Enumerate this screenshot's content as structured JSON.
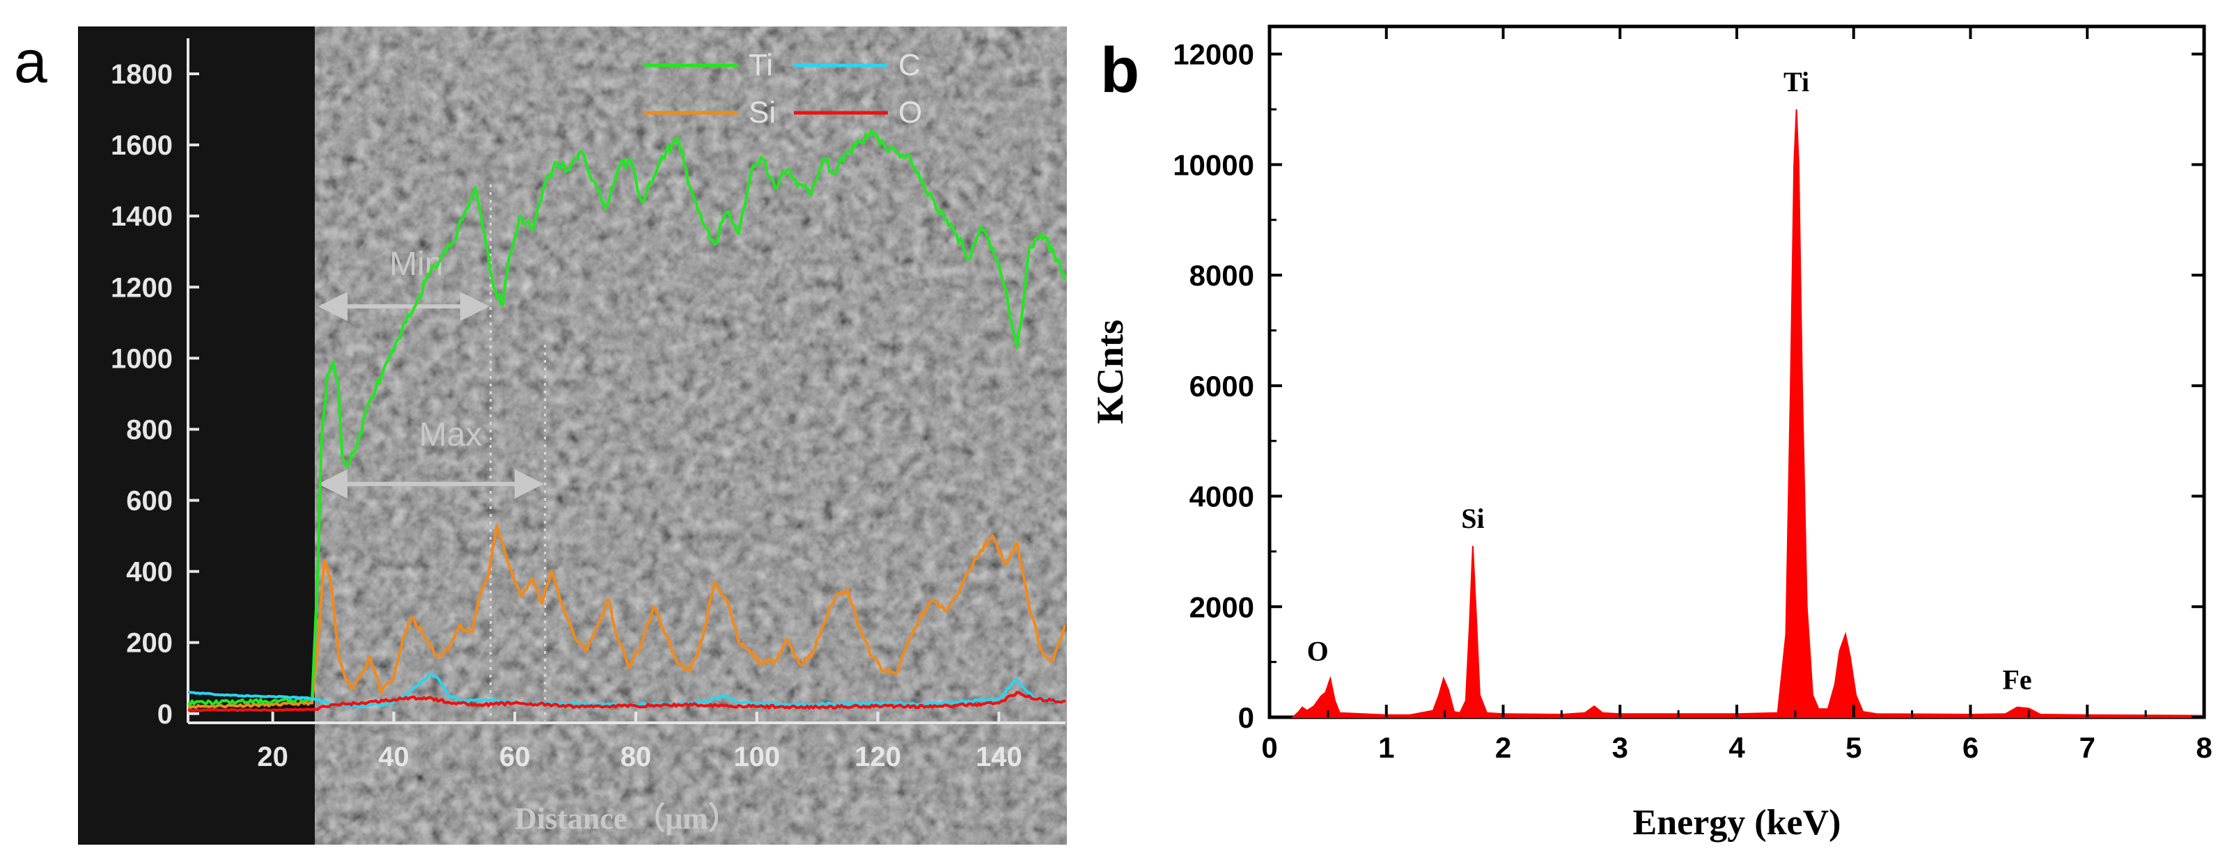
{
  "panels": {
    "a_label": "a",
    "b_label": "b"
  },
  "colors": {
    "Ti": "#22e622",
    "C": "#2ad4f0",
    "Si": "#f08a1c",
    "O": "#ee1111",
    "edx_fill": "#ff0000",
    "sem_dark": "#141414",
    "sem_mid": "#5a5a5a",
    "annot": "#c8c8c8"
  },
  "annotations_a": {
    "min_label": "Min",
    "max_label": "Max",
    "min_start": 28,
    "min_end": 56,
    "max_end": 65,
    "substrate_edge": 27
  },
  "chart_data": [
    {
      "panel": "a",
      "type": "line",
      "title": "",
      "xlabel": "Distance （μm）",
      "ylabel": "",
      "xlim": [
        6,
        151
      ],
      "ylim": [
        -20,
        1900
      ],
      "xticks": [
        20,
        40,
        60,
        80,
        100,
        120,
        140
      ],
      "yticks": [
        0,
        200,
        400,
        600,
        800,
        1000,
        1200,
        1400,
        1600,
        1800
      ],
      "legend_position": "top-right",
      "series": [
        {
          "name": "Ti",
          "x": [
            6,
            20,
            26.5,
            27.5,
            28,
            29,
            30,
            30.8,
            31.5,
            32.5,
            34,
            36,
            38,
            40,
            42,
            44,
            46,
            48,
            50,
            52,
            53.5,
            55,
            56.5,
            58,
            59,
            61,
            63,
            65,
            67,
            69,
            71,
            73,
            75,
            77,
            79,
            81,
            83,
            85,
            87,
            89,
            91,
            93,
            95,
            97,
            99,
            101,
            103,
            105,
            107,
            109,
            111,
            113,
            115,
            117,
            119,
            121,
            123,
            125,
            127,
            129,
            131,
            133,
            135,
            137,
            139,
            141,
            143,
            144,
            145,
            147,
            149,
            151
          ],
          "values": [
            30,
            35,
            40,
            420,
            750,
            950,
            990,
            930,
            720,
            700,
            760,
            880,
            950,
            1020,
            1100,
            1170,
            1240,
            1290,
            1330,
            1420,
            1480,
            1350,
            1200,
            1150,
            1280,
            1400,
            1360,
            1490,
            1550,
            1530,
            1580,
            1500,
            1420,
            1530,
            1560,
            1440,
            1510,
            1580,
            1620,
            1480,
            1380,
            1320,
            1410,
            1350,
            1520,
            1560,
            1480,
            1530,
            1490,
            1460,
            1560,
            1520,
            1580,
            1610,
            1640,
            1600,
            1580,
            1570,
            1500,
            1450,
            1390,
            1350,
            1280,
            1370,
            1310,
            1200,
            1030,
            1150,
            1310,
            1350,
            1300,
            1220
          ]
        },
        {
          "name": "C",
          "x": [
            6,
            10,
            15,
            20,
            25,
            27,
            30,
            35,
            40,
            44,
            46,
            47.5,
            49,
            52,
            55,
            60,
            70,
            80,
            90,
            95,
            97,
            100,
            110,
            120,
            130,
            140,
            142,
            143,
            146,
            151
          ],
          "values": [
            60,
            55,
            50,
            48,
            45,
            40,
            25,
            20,
            30,
            80,
            110,
            95,
            50,
            35,
            40,
            30,
            28,
            25,
            30,
            50,
            30,
            28,
            25,
            30,
            28,
            40,
            80,
            95,
            40,
            35
          ]
        },
        {
          "name": "Si",
          "x": [
            6,
            20,
            26.5,
            27.5,
            28.5,
            29.5,
            31,
            33,
            35,
            36,
            38,
            40,
            41.5,
            43,
            45,
            47,
            49,
            51,
            53,
            54,
            55.5,
            57,
            59,
            61,
            63,
            64.5,
            66,
            68,
            70,
            72,
            74,
            75.5,
            77,
            79,
            81,
            83,
            85,
            87,
            89,
            91,
            93,
            95,
            97,
            99,
            101,
            103,
            105,
            107,
            109,
            111,
            113,
            115,
            117,
            119,
            121,
            123,
            125,
            127,
            129,
            131,
            133,
            135,
            137,
            139,
            141,
            143,
            145,
            147,
            149,
            151
          ],
          "values": [
            20,
            25,
            30,
            200,
            430,
            380,
            150,
            70,
            120,
            160,
            60,
            100,
            210,
            270,
            220,
            160,
            180,
            250,
            230,
            320,
            380,
            530,
            420,
            330,
            380,
            310,
            400,
            300,
            210,
            180,
            260,
            320,
            210,
            130,
            200,
            300,
            220,
            140,
            120,
            210,
            370,
            320,
            200,
            170,
            140,
            150,
            210,
            140,
            160,
            250,
            330,
            350,
            240,
            160,
            120,
            110,
            200,
            270,
            320,
            290,
            330,
            400,
            460,
            500,
            420,
            480,
            300,
            180,
            150,
            250
          ]
        },
        {
          "name": "O",
          "x": [
            6,
            20,
            27,
            30,
            35,
            40,
            45,
            50,
            55,
            60,
            70,
            80,
            90,
            100,
            110,
            120,
            130,
            140,
            143,
            146,
            151
          ],
          "values": [
            10,
            10,
            12,
            25,
            30,
            40,
            45,
            30,
            25,
            30,
            20,
            22,
            25,
            20,
            18,
            22,
            20,
            30,
            60,
            40,
            35
          ]
        }
      ]
    },
    {
      "panel": "b",
      "type": "area",
      "title": "",
      "xlabel": "Energy (keV)",
      "ylabel": "KCnts",
      "xlim": [
        0,
        8
      ],
      "ylim": [
        0,
        12500
      ],
      "xticks": [
        0,
        1,
        2,
        3,
        4,
        5,
        6,
        7,
        8
      ],
      "yticks": [
        0,
        2000,
        4000,
        6000,
        8000,
        10000,
        12000
      ],
      "peaks": [
        {
          "label": "O",
          "x": 0.52,
          "value": 700
        },
        {
          "label": "Si",
          "x": 1.74,
          "value": 3100
        },
        {
          "label": "Ti",
          "x": 4.51,
          "value": 11000
        },
        {
          "label": "Fe",
          "x": 6.4,
          "value": 180
        }
      ],
      "spectrum": {
        "x": [
          0.2,
          0.25,
          0.28,
          0.32,
          0.38,
          0.44,
          0.48,
          0.52,
          0.56,
          0.6,
          0.8,
          1.0,
          1.2,
          1.4,
          1.45,
          1.49,
          1.53,
          1.58,
          1.63,
          1.68,
          1.71,
          1.74,
          1.77,
          1.8,
          1.86,
          2.0,
          2.5,
          2.7,
          2.78,
          2.85,
          3.0,
          3.5,
          4.0,
          4.35,
          4.42,
          4.46,
          4.49,
          4.51,
          4.53,
          4.56,
          4.6,
          4.65,
          4.7,
          4.78,
          4.84,
          4.88,
          4.93,
          4.97,
          5.02,
          5.08,
          5.2,
          6.0,
          6.3,
          6.4,
          6.5,
          6.6,
          7.0,
          8.0
        ],
        "values": [
          0,
          100,
          180,
          120,
          200,
          380,
          450,
          700,
          300,
          80,
          60,
          40,
          40,
          120,
          400,
          700,
          500,
          100,
          80,
          300,
          1600,
          3100,
          1800,
          400,
          80,
          60,
          50,
          80,
          200,
          80,
          60,
          60,
          60,
          80,
          1500,
          6000,
          10000,
          11000,
          10000,
          6000,
          2000,
          400,
          150,
          150,
          600,
          1200,
          1500,
          1100,
          400,
          100,
          60,
          50,
          60,
          180,
          160,
          50,
          40,
          30
        ]
      }
    }
  ]
}
